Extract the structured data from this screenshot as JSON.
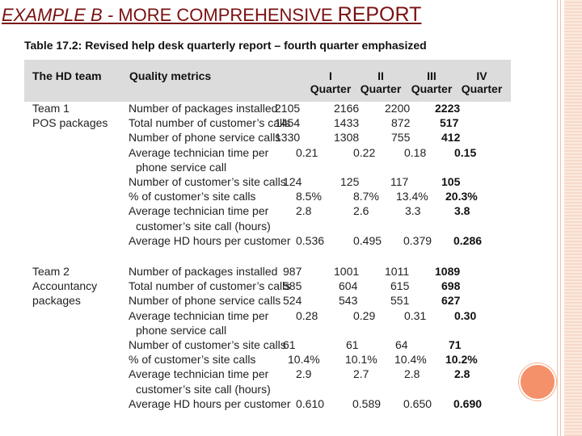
{
  "slide_title": {
    "part1": "EXAMPLE B - ",
    "part2": "MORE COMPREHENSIVE ",
    "part3": "REPORT"
  },
  "caption": {
    "label": "Table 17.2:",
    "text": " Revised help desk quarterly report – fourth quarter emphasized"
  },
  "header": {
    "team": "The HD team",
    "metrics": "Quality metrics",
    "quarters": [
      {
        "num": "I",
        "label": "Quarter"
      },
      {
        "num": "II",
        "label": "Quarter"
      },
      {
        "num": "III",
        "label": "Quarter"
      },
      {
        "num": "IV",
        "label": "Quarter"
      }
    ]
  },
  "teams": [
    {
      "name_lines": [
        "Team 1",
        "POS packages"
      ],
      "rows": [
        {
          "metric": [
            "Number of packages installed"
          ],
          "values": [
            "2105",
            "2166",
            "2200",
            "2223"
          ]
        },
        {
          "metric": [
            "Total number of customer’s calls"
          ],
          "values": [
            "1454",
            "1433",
            "872",
            "517"
          ]
        },
        {
          "metric": [
            "Number of phone service calls"
          ],
          "values": [
            "1330",
            "1308",
            "755",
            "412"
          ]
        },
        {
          "metric": [
            "Average technician time per",
            "phone service call"
          ],
          "values": [
            "0.21",
            "0.22",
            "0.18",
            "0.15"
          ]
        },
        {
          "metric": [
            "Number of customer’s site calls"
          ],
          "values": [
            "124",
            "125",
            "117",
            "105"
          ]
        },
        {
          "metric": [
            "% of customer’s site calls"
          ],
          "values": [
            "8.5%",
            "8.7%",
            "13.4%",
            "20.3%"
          ]
        },
        {
          "metric": [
            "Average technician time per",
            "customer’s site call (hours)"
          ],
          "values": [
            "2.8",
            "2.6",
            "3.3",
            "3.8"
          ]
        },
        {
          "metric": [
            "Average HD hours per customer"
          ],
          "values": [
            "0.536",
            "0.495",
            "0.379",
            "0.286"
          ]
        }
      ]
    },
    {
      "name_lines": [
        "Team 2",
        "Accountancy",
        "packages"
      ],
      "rows": [
        {
          "metric": [
            "Number of packages installed"
          ],
          "values": [
            "987",
            "1001",
            "1011",
            "1089"
          ]
        },
        {
          "metric": [
            "Total number of customer’s calls"
          ],
          "values": [
            "585",
            "604",
            "615",
            "698"
          ]
        },
        {
          "metric": [
            "Number of phone service calls"
          ],
          "values": [
            "524",
            "543",
            "551",
            "627"
          ]
        },
        {
          "metric": [
            "Average technician time per",
            "phone service call"
          ],
          "values": [
            "0.28",
            "0.29",
            "0.31",
            "0.30"
          ]
        },
        {
          "metric": [
            "Number of customer’s site calls"
          ],
          "values": [
            "61",
            "61",
            "64",
            "71"
          ]
        },
        {
          "metric": [
            "% of customer’s site calls"
          ],
          "values": [
            "10.4%",
            "10.1%",
            "10.4%",
            "10.2%"
          ]
        },
        {
          "metric": [
            "Average technician time per",
            "customer’s site call (hours)"
          ],
          "values": [
            "2.9",
            "2.7",
            "2.8",
            "2.8"
          ]
        },
        {
          "metric": [
            "Average HD hours per customer"
          ],
          "values": [
            "0.610",
            "0.589",
            "0.650",
            "0.690"
          ]
        }
      ]
    }
  ]
}
